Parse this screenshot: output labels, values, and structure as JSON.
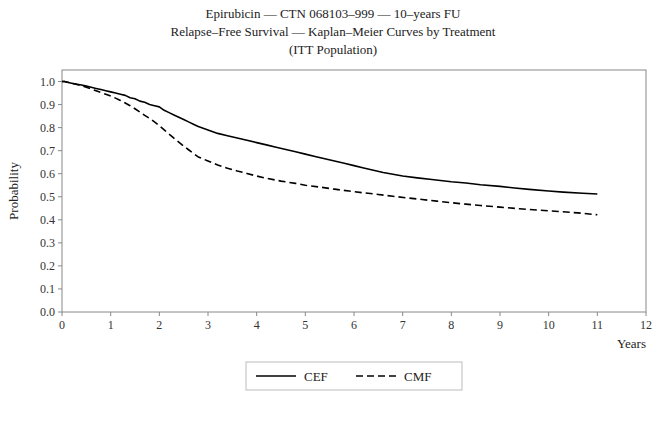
{
  "chart_data": {
    "type": "line",
    "title": [
      "Epirubicin — CTN 068103–999 — 10–years FU",
      "Relapse–Free Survival — Kaplan–Meier Curves by Treatment",
      "(ITT Population)"
    ],
    "x_label": "Years",
    "y_label": "Probability",
    "xlim": [
      0,
      12
    ],
    "ylim": [
      0.0,
      1.05
    ],
    "xticks": [
      0,
      1,
      2,
      3,
      4,
      5,
      6,
      7,
      8,
      9,
      10,
      11,
      12
    ],
    "yticks": [
      {
        "value": 0.0,
        "label": "0.0"
      },
      0.1,
      0.2,
      0.3,
      0.4,
      0.5,
      0.6,
      0.7,
      0.8,
      0.9,
      {
        "value": 1.0,
        "label": "1.0"
      }
    ],
    "grid": false,
    "legend": "bottom",
    "series": [
      {
        "name": "CEF",
        "color": "#000000",
        "line_style": "solid",
        "x": [
          0,
          0.05,
          0.15,
          0.25,
          0.4,
          0.5,
          0.6,
          0.7,
          0.8,
          0.9,
          1.0,
          1.1,
          1.2,
          1.3,
          1.4,
          1.5,
          1.6,
          1.7,
          1.8,
          1.9,
          2.0,
          2.1,
          2.2,
          2.3,
          2.4,
          2.5,
          2.6,
          2.7,
          2.8,
          3.0,
          3.2,
          3.4,
          3.6,
          3.8,
          4.0,
          4.2,
          4.4,
          4.6,
          4.8,
          5.0,
          5.2,
          5.4,
          5.6,
          5.8,
          6.0,
          6.2,
          6.4,
          6.6,
          6.8,
          7.0,
          7.3,
          7.6,
          8.0,
          8.3,
          8.6,
          9.0,
          9.3,
          9.6,
          10.0,
          10.3,
          10.7,
          11.0
        ],
        "values": [
          1.0,
          1.0,
          0.995,
          0.99,
          0.985,
          0.98,
          0.975,
          0.97,
          0.965,
          0.96,
          0.955,
          0.95,
          0.945,
          0.94,
          0.93,
          0.925,
          0.915,
          0.91,
          0.9,
          0.895,
          0.89,
          0.875,
          0.865,
          0.855,
          0.845,
          0.835,
          0.825,
          0.815,
          0.805,
          0.79,
          0.775,
          0.765,
          0.755,
          0.745,
          0.735,
          0.725,
          0.715,
          0.705,
          0.695,
          0.685,
          0.675,
          0.665,
          0.655,
          0.645,
          0.635,
          0.625,
          0.615,
          0.605,
          0.598,
          0.59,
          0.582,
          0.575,
          0.565,
          0.56,
          0.552,
          0.545,
          0.538,
          0.532,
          0.525,
          0.52,
          0.515,
          0.512
        ]
      },
      {
        "name": "CMF",
        "color": "#000000",
        "line_style": "dashed",
        "x": [
          0,
          0.05,
          0.15,
          0.25,
          0.4,
          0.5,
          0.6,
          0.7,
          0.8,
          0.9,
          1.0,
          1.1,
          1.2,
          1.3,
          1.4,
          1.5,
          1.6,
          1.7,
          1.8,
          1.9,
          2.0,
          2.1,
          2.2,
          2.3,
          2.4,
          2.5,
          2.6,
          2.7,
          2.8,
          3.0,
          3.2,
          3.4,
          3.6,
          3.8,
          4.0,
          4.2,
          4.5,
          4.8,
          5.0,
          5.3,
          5.6,
          5.9,
          6.2,
          6.5,
          6.8,
          7.1,
          7.4,
          7.7,
          8.0,
          8.3,
          8.6,
          9.0,
          9.4,
          9.8,
          10.2,
          10.6,
          11.0
        ],
        "values": [
          1.0,
          1.0,
          0.995,
          0.99,
          0.982,
          0.975,
          0.968,
          0.96,
          0.952,
          0.945,
          0.937,
          0.928,
          0.918,
          0.907,
          0.895,
          0.882,
          0.868,
          0.853,
          0.84,
          0.825,
          0.808,
          0.79,
          0.772,
          0.754,
          0.737,
          0.72,
          0.704,
          0.688,
          0.673,
          0.655,
          0.638,
          0.624,
          0.612,
          0.601,
          0.59,
          0.58,
          0.568,
          0.558,
          0.55,
          0.542,
          0.533,
          0.525,
          0.517,
          0.51,
          0.502,
          0.495,
          0.488,
          0.481,
          0.474,
          0.468,
          0.462,
          0.455,
          0.448,
          0.442,
          0.436,
          0.43,
          0.422
        ]
      }
    ]
  }
}
